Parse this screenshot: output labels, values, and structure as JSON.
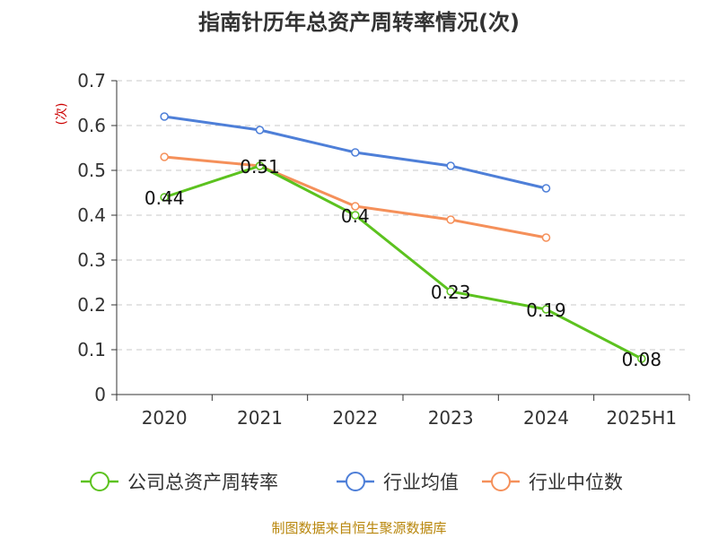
{
  "chart_data": {
    "type": "line",
    "title": "指南针历年总资产周转率情况(次)",
    "ylabel": "(次)",
    "xlabel": "",
    "categories": [
      "2020",
      "2021",
      "2022",
      "2023",
      "2024",
      "2025H1"
    ],
    "ylim": [
      0,
      0.7
    ],
    "yticks": [
      0,
      0.1,
      0.2,
      0.3,
      0.4,
      0.5,
      0.6,
      0.7
    ],
    "ytick_labels": [
      "0",
      "0.1",
      "0.2",
      "0.3",
      "0.4",
      "0.5",
      "0.6",
      "0.7"
    ],
    "grid": true,
    "legend_position": "bottom",
    "series": [
      {
        "name": "公司总资产周转率",
        "color": "#5cc21f",
        "values": [
          0.44,
          0.51,
          0.4,
          0.23,
          0.19,
          0.08
        ],
        "data_labels": [
          "0.44",
          "0.51",
          "0.4",
          "0.23",
          "0.19",
          "0.08"
        ]
      },
      {
        "name": "行业均值",
        "color": "#4e7fd8",
        "values": [
          0.62,
          0.59,
          0.54,
          0.51,
          0.46,
          null
        ]
      },
      {
        "name": "行业中位数",
        "color": "#f5905a",
        "values": [
          0.53,
          0.51,
          0.42,
          0.39,
          0.35,
          null
        ]
      }
    ]
  },
  "footer": {
    "source": "制图数据来自恒生聚源数据库"
  }
}
